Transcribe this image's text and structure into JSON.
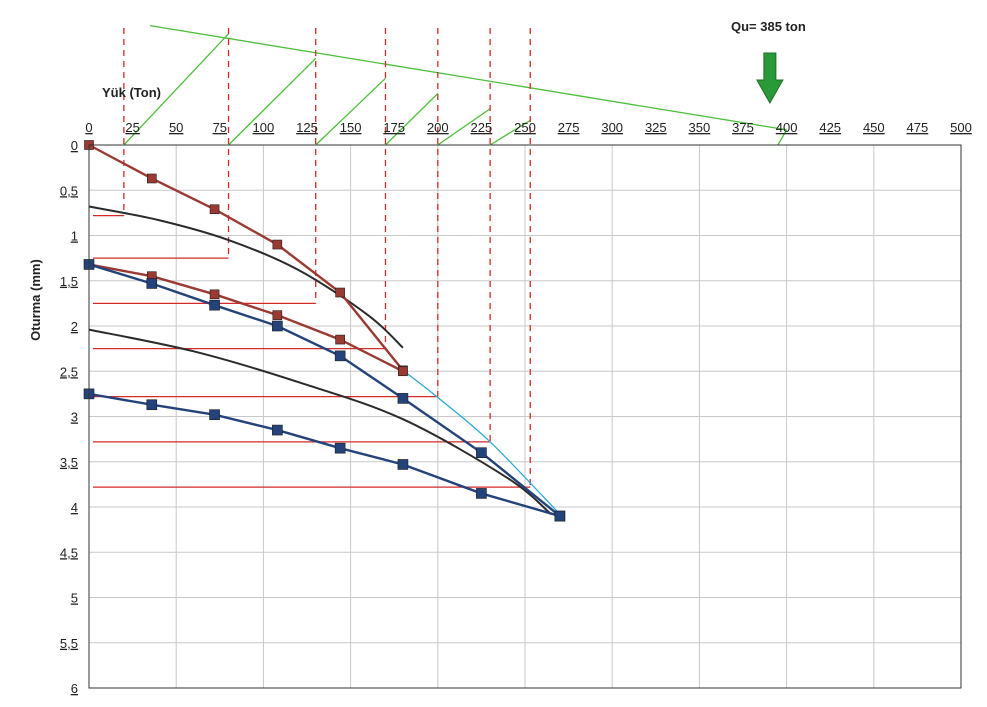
{
  "chart_data": {
    "type": "line",
    "annotation": "Qu= 385 ton",
    "xlabel": "Yük (Ton)",
    "ylabel": "Oturma (mm)",
    "xlim": [
      0,
      500
    ],
    "ylim": [
      0,
      6
    ],
    "x_axis_position": "top",
    "y_axis_inverted": true,
    "grid": true,
    "x_ticks": [
      "0",
      "25",
      "50",
      "75",
      "100",
      "125",
      "150",
      "175",
      "200",
      "225",
      "250",
      "275",
      "300",
      "325",
      "350",
      "375",
      "400",
      "425",
      "450",
      "475",
      "500"
    ],
    "y_ticks": [
      "0",
      "0,5",
      "1",
      "1,5",
      "2",
      "2,5",
      "3",
      "3,5",
      "4",
      "4,5",
      "5",
      "5,5",
      "6"
    ],
    "colors": {
      "red_series": "#9b3a33",
      "blue_series": "#24437a",
      "fit_curve": "#2b2b2b",
      "tangent": "#29a8d8",
      "construction_red": "#d42a2a",
      "construction_green": "#4cbf3a",
      "arrow": "#2a9a38"
    },
    "series": [
      {
        "kind": "red",
        "x": [
          0,
          36,
          72,
          108,
          144,
          180
        ],
        "y": [
          0,
          0.37,
          0.71,
          1.1,
          1.63,
          2.49
        ]
      },
      {
        "kind": "red",
        "x": [
          0,
          36,
          72,
          108,
          144,
          180
        ],
        "y": [
          1.32,
          1.45,
          1.65,
          1.88,
          2.15,
          2.5
        ]
      },
      {
        "kind": "blue",
        "x": [
          0,
          36,
          72,
          108,
          144,
          180,
          225,
          270
        ],
        "y": [
          1.32,
          1.53,
          1.77,
          2.0,
          2.33,
          2.8,
          3.4,
          4.1
        ]
      },
      {
        "kind": "blue",
        "x": [
          0,
          36,
          72,
          108,
          144,
          180,
          225,
          270
        ],
        "y": [
          2.75,
          2.87,
          2.98,
          3.15,
          3.35,
          3.53,
          3.85,
          4.1
        ]
      }
    ],
    "fit_curves": [
      {
        "x": [
          0,
          40,
          80,
          120,
          160,
          180
        ],
        "y": [
          0.68,
          0.83,
          1.05,
          1.38,
          1.88,
          2.24
        ]
      },
      {
        "x": [
          0,
          60,
          120,
          180,
          240,
          265
        ],
        "y": [
          2.04,
          2.28,
          2.62,
          3.03,
          3.68,
          4.08
        ]
      }
    ],
    "tangent_line": {
      "x": [
        180,
        200,
        230,
        270
      ],
      "y": [
        2.49,
        2.79,
        3.28,
        4.08
      ]
    },
    "red_horizontals": [
      {
        "y": 0.78,
        "x_end": 20
      },
      {
        "y": 1.25,
        "x_end": 80
      },
      {
        "y": 1.75,
        "x_end": 130
      },
      {
        "y": 2.25,
        "x_end": 170
      },
      {
        "y": 2.78,
        "x_end": 200
      },
      {
        "y": 3.28,
        "x_end": 230
      },
      {
        "y": 3.78,
        "x_end": 253
      }
    ],
    "red_verticals": [
      {
        "x": 20,
        "y_end": 0.78
      },
      {
        "x": 80,
        "y_end": 1.25
      },
      {
        "x": 130,
        "y_end": 1.75
      },
      {
        "x": 170,
        "y_end": 2.25
      },
      {
        "x": 200,
        "y_end": 2.78
      },
      {
        "x": 230,
        "y_end": 3.28
      },
      {
        "x": 253,
        "y_end": 3.78
      }
    ],
    "green_envelope": {
      "x": [
        35,
        400
      ],
      "u": [
        1.02,
        0.13
      ]
    },
    "green_ticks": [
      {
        "x1": 80,
        "u1": 0.95,
        "x2": 20,
        "u2": 0
      },
      {
        "x1": 130,
        "u1": 0.74,
        "x2": 80,
        "u2": 0
      },
      {
        "x1": 170,
        "u1": 0.57,
        "x2": 130,
        "u2": 0
      },
      {
        "x1": 200,
        "u1": 0.44,
        "x2": 170,
        "u2": 0
      },
      {
        "x1": 230,
        "u1": 0.31,
        "x2": 200,
        "u2": 0
      },
      {
        "x1": 253,
        "u1": 0.21,
        "x2": 230,
        "u2": 0
      }
    ],
    "arrow_x": 395
  }
}
